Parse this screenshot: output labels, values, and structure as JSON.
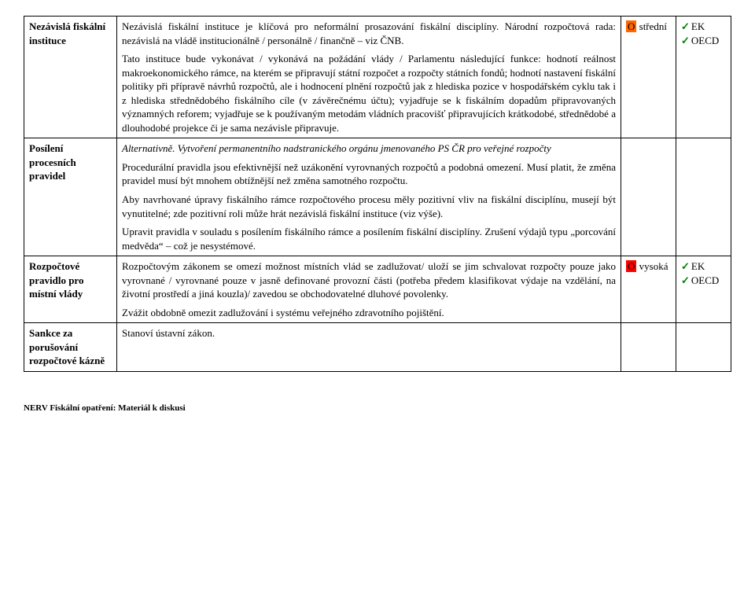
{
  "rows": [
    {
      "label": "Nezávislá fiskální instituce",
      "body_html": "<p>Nezávislá fiskální instituce je klíčová pro neformální prosazování fiskální disciplíny. Národní rozpočtová rada: nezávislá na vládě institucionálně / personálně / finančně – viz ČNB.</p><p>Tato instituce bude vykonávat / vykonává na požádání vlády / Parlamentu následující funkce: hodnotí reálnost makroekonomického rámce, na kterém se připravují státní rozpočet a rozpočty státních fondů; hodnotí nastavení fiskální politiky při přípravě návrhů rozpočtů, ale i hodnocení plnění rozpočtů jak z hlediska pozice v hospodářském cyklu tak i z hlediska střednědobého fiskálního cíle (v závěrečnému účtu); vyjadřuje se k fiskálním dopadům připravovaných významných reforem; vyjadřuje se k používaným metodám vládních pracovišť připravujících krátkodobé, střednědobé a dlouhodobé projekce či je sama nezávisle připravuje.</p>",
      "priority": {
        "hl": "orange",
        "text": "O střední"
      },
      "refs": [
        "EK",
        "OECD"
      ]
    },
    {
      "label": "Posílení procesních pravidel",
      "body_html": "<p class=\"italic\">Alternativně. Vytvoření permanentního nadstranického orgánu jmenovaného PS ČR pro veřejné rozpočty</p><p>Procedurální pravidla jsou efektivnější než uzákonění vyrovnaných rozpočtů a podobná omezení. Musí platit, že změna pravidel musí být mnohem obtížnější než změna samotného rozpočtu.</p><p>Aby navrhované úpravy fiskálního rámce rozpočtového procesu měly pozitivní vliv na fiskální disciplínu, musejí být vynutitelné; zde pozitivní roli může hrát nezávislá fiskální instituce (viz výše).</p><p>Upravit pravidla v souladu s posílením fiskálního rámce a posílením fiskální disciplíny. Zrušení výdajů typu „porcování medvěda“ – což je nesystémové.</p>",
      "priority": null,
      "refs": null
    },
    {
      "label": "Rozpočtové pravidlo pro místní vlády",
      "body_html": "<p>Rozpočtovým zákonem se omezí možnost místních vlád se zadlužovat/ uloží se jim schvalovat rozpočty pouze jako vyrovnané / vyrovnané pouze v jasně definované provozní části (potřeba předem klasifikovat výdaje na vzdělání, na životní prostředí a jiná kouzla)/ zavedou se obchodovatelné dluhové povolenky.</p><p>Zvážit obdobně omezit zadlužování i systému veřejného zdravotního pojištění.</p>",
      "priority": {
        "hl": "red",
        "text": "O vysoká"
      },
      "refs": [
        "EK",
        "OECD"
      ]
    },
    {
      "label": "Sankce za porušování rozpočtové kázně",
      "body_html": "<p>Stanoví ústavní zákon.</p>",
      "priority": null,
      "refs": null
    }
  ],
  "footer": "NERV Fiskální opatření: Materiál k diskusi"
}
